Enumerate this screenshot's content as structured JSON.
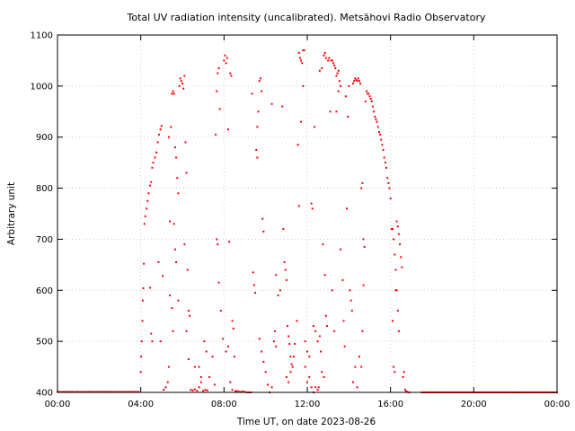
{
  "chart_data": {
    "type": "scatter",
    "title": "Total UV radiation intensity (uncalibrated). Metsähovi Radio Observatory",
    "xlabel": "Time UT, on date 2023-08-26",
    "ylabel": "Arbitrary unit",
    "xlim": [
      0,
      24
    ],
    "ylim": [
      400,
      1100
    ],
    "grid": true,
    "point_color": "#ff0000",
    "x_ticks": [
      {
        "value": 0,
        "label": "00:00"
      },
      {
        "value": 4,
        "label": "04:00"
      },
      {
        "value": 8,
        "label": "08:00"
      },
      {
        "value": 12,
        "label": "12:00"
      },
      {
        "value": 16,
        "label": "16:00"
      },
      {
        "value": 20,
        "label": "20:00"
      },
      {
        "value": 24,
        "label": "00:00"
      }
    ],
    "y_ticks": [
      {
        "value": 400,
        "label": "400"
      },
      {
        "value": 500,
        "label": "500"
      },
      {
        "value": 600,
        "label": "600"
      },
      {
        "value": 700,
        "label": "700"
      },
      {
        "value": 800,
        "label": "800"
      },
      {
        "value": 900,
        "label": "900"
      },
      {
        "value": 1000,
        "label": "1000"
      },
      {
        "value": 1100,
        "label": "1100"
      }
    ],
    "points": [
      [
        0.0,
        401
      ],
      [
        0.5,
        401
      ],
      [
        1.0,
        401
      ],
      [
        1.5,
        401
      ],
      [
        2.0,
        401
      ],
      [
        2.5,
        401
      ],
      [
        3.0,
        401
      ],
      [
        3.5,
        401
      ],
      [
        3.9,
        401
      ],
      [
        4.0,
        440
      ],
      [
        4.02,
        470
      ],
      [
        4.05,
        500
      ],
      [
        4.08,
        540
      ],
      [
        4.1,
        580
      ],
      [
        4.12,
        604
      ],
      [
        4.15,
        652
      ],
      [
        4.18,
        730
      ],
      [
        4.22,
        745
      ],
      [
        4.28,
        760
      ],
      [
        4.33,
        775
      ],
      [
        4.38,
        790
      ],
      [
        4.45,
        805
      ],
      [
        4.5,
        812
      ],
      [
        4.55,
        840
      ],
      [
        4.6,
        850
      ],
      [
        4.68,
        860
      ],
      [
        4.75,
        870
      ],
      [
        4.82,
        890
      ],
      [
        4.88,
        905
      ],
      [
        4.95,
        915
      ],
      [
        5.0,
        922
      ],
      [
        4.45,
        605
      ],
      [
        4.5,
        515
      ],
      [
        4.55,
        500
      ],
      [
        4.85,
        655
      ],
      [
        4.95,
        500
      ],
      [
        5.05,
        628
      ],
      [
        5.1,
        405
      ],
      [
        5.2,
        410
      ],
      [
        5.3,
        420
      ],
      [
        5.35,
        450
      ],
      [
        5.4,
        735
      ],
      [
        5.45,
        920
      ],
      [
        5.5,
        985
      ],
      [
        5.55,
        990
      ],
      [
        5.6,
        985
      ],
      [
        5.65,
        880
      ],
      [
        5.7,
        860
      ],
      [
        5.75,
        820
      ],
      [
        5.8,
        790
      ],
      [
        5.35,
        900
      ],
      [
        5.4,
        590
      ],
      [
        5.5,
        565
      ],
      [
        5.55,
        520
      ],
      [
        5.6,
        730
      ],
      [
        5.65,
        680
      ],
      [
        5.7,
        655
      ],
      [
        5.8,
        580
      ],
      [
        5.85,
        1000
      ],
      [
        5.9,
        1015
      ],
      [
        5.95,
        1010
      ],
      [
        6.0,
        1005
      ],
      [
        6.05,
        995
      ],
      [
        6.1,
        1020
      ],
      [
        6.15,
        890
      ],
      [
        6.2,
        830
      ],
      [
        6.25,
        640
      ],
      [
        6.3,
        560
      ],
      [
        6.35,
        550
      ],
      [
        6.1,
        690
      ],
      [
        6.2,
        520
      ],
      [
        6.3,
        465
      ],
      [
        6.4,
        405
      ],
      [
        6.5,
        404
      ],
      [
        6.6,
        406
      ],
      [
        6.7,
        403
      ],
      [
        6.8,
        410
      ],
      [
        6.9,
        420
      ],
      [
        7.0,
        403
      ],
      [
        7.1,
        405
      ],
      [
        7.2,
        404
      ],
      [
        6.6,
        450
      ],
      [
        6.8,
        450
      ],
      [
        6.9,
        430
      ],
      [
        7.05,
        500
      ],
      [
        7.15,
        480
      ],
      [
        7.3,
        430
      ],
      [
        7.45,
        470
      ],
      [
        7.55,
        415
      ],
      [
        7.6,
        905
      ],
      [
        7.65,
        990
      ],
      [
        7.7,
        1025
      ],
      [
        7.75,
        1035
      ],
      [
        7.8,
        955
      ],
      [
        7.65,
        700
      ],
      [
        7.7,
        690
      ],
      [
        7.75,
        615
      ],
      [
        7.85,
        560
      ],
      [
        7.95,
        505
      ],
      [
        8.0,
        1050
      ],
      [
        8.05,
        1060
      ],
      [
        8.1,
        1045
      ],
      [
        8.15,
        1055
      ],
      [
        8.2,
        915
      ],
      [
        8.25,
        695
      ],
      [
        8.1,
        480
      ],
      [
        8.2,
        490
      ],
      [
        8.3,
        1025
      ],
      [
        8.35,
        1020
      ],
      [
        8.4,
        540
      ],
      [
        8.45,
        525
      ],
      [
        8.5,
        470
      ],
      [
        8.3,
        420
      ],
      [
        8.4,
        405
      ],
      [
        8.55,
        402
      ],
      [
        8.6,
        403
      ],
      [
        8.7,
        402
      ],
      [
        8.8,
        401
      ],
      [
        8.9,
        402
      ],
      [
        9.0,
        401
      ],
      [
        9.1,
        400
      ],
      [
        9.2,
        400
      ],
      [
        9.3,
        400
      ],
      [
        9.35,
        985
      ],
      [
        9.4,
        635
      ],
      [
        9.45,
        610
      ],
      [
        9.5,
        595
      ],
      [
        9.55,
        875
      ],
      [
        9.6,
        860
      ],
      [
        9.6,
        920
      ],
      [
        9.65,
        950
      ],
      [
        9.7,
        1010
      ],
      [
        9.75,
        1015
      ],
      [
        9.8,
        990
      ],
      [
        9.85,
        740
      ],
      [
        9.9,
        715
      ],
      [
        9.7,
        505
      ],
      [
        9.8,
        480
      ],
      [
        9.9,
        460
      ],
      [
        10.0,
        440
      ],
      [
        10.1,
        415
      ],
      [
        10.2,
        400
      ],
      [
        10.3,
        410
      ],
      [
        10.4,
        500
      ],
      [
        10.45,
        520
      ],
      [
        10.5,
        490
      ],
      [
        10.3,
        965
      ],
      [
        10.5,
        630
      ],
      [
        10.6,
        590
      ],
      [
        10.7,
        600
      ],
      [
        10.8,
        960
      ],
      [
        10.85,
        720
      ],
      [
        10.9,
        655
      ],
      [
        10.95,
        640
      ],
      [
        11.0,
        620
      ],
      [
        11.05,
        530
      ],
      [
        11.1,
        510
      ],
      [
        11.15,
        495
      ],
      [
        11.2,
        470
      ],
      [
        11.25,
        455
      ],
      [
        11.0,
        430
      ],
      [
        11.1,
        420
      ],
      [
        11.2,
        440
      ],
      [
        11.3,
        450
      ],
      [
        11.35,
        470
      ],
      [
        11.4,
        495
      ],
      [
        11.5,
        540
      ],
      [
        11.55,
        885
      ],
      [
        11.6,
        1065
      ],
      [
        11.65,
        1055
      ],
      [
        11.7,
        1050
      ],
      [
        11.75,
        1045
      ],
      [
        11.8,
        1070
      ],
      [
        11.85,
        1070
      ],
      [
        11.8,
        1000
      ],
      [
        11.7,
        930
      ],
      [
        11.6,
        765
      ],
      [
        11.9,
        450
      ],
      [
        12.0,
        420
      ],
      [
        12.1,
        430
      ],
      [
        12.2,
        410
      ],
      [
        12.3,
        400
      ],
      [
        12.4,
        410
      ],
      [
        12.5,
        405
      ],
      [
        12.55,
        410
      ],
      [
        11.9,
        500
      ],
      [
        12.0,
        480
      ],
      [
        12.1,
        470
      ],
      [
        12.3,
        530
      ],
      [
        12.4,
        520
      ],
      [
        12.5,
        500
      ],
      [
        12.6,
        510
      ],
      [
        12.65,
        480
      ],
      [
        12.2,
        770
      ],
      [
        12.25,
        760
      ],
      [
        12.35,
        920
      ],
      [
        12.6,
        1030
      ],
      [
        12.7,
        1035
      ],
      [
        12.8,
        1060
      ],
      [
        12.85,
        1065
      ],
      [
        12.9,
        1055
      ],
      [
        12.75,
        690
      ],
      [
        12.85,
        630
      ],
      [
        12.9,
        550
      ],
      [
        12.95,
        530
      ],
      [
        12.7,
        440
      ],
      [
        12.8,
        430
      ],
      [
        13.0,
        1050
      ],
      [
        13.05,
        1055
      ],
      [
        13.1,
        950
      ],
      [
        13.15,
        1050
      ],
      [
        13.2,
        1050
      ],
      [
        13.25,
        1045
      ],
      [
        13.3,
        1040
      ],
      [
        13.35,
        1035
      ],
      [
        13.4,
        1020
      ],
      [
        13.45,
        1025
      ],
      [
        13.5,
        1030
      ],
      [
        13.55,
        1010
      ],
      [
        13.6,
        1000
      ],
      [
        13.2,
        600
      ],
      [
        13.3,
        520
      ],
      [
        13.4,
        950
      ],
      [
        13.5,
        990
      ],
      [
        13.6,
        680
      ],
      [
        13.7,
        620
      ],
      [
        13.75,
        540
      ],
      [
        13.8,
        490
      ],
      [
        13.85,
        980
      ],
      [
        13.9,
        760
      ],
      [
        13.95,
        940
      ],
      [
        14.0,
        1000
      ],
      [
        14.05,
        600
      ],
      [
        14.1,
        580
      ],
      [
        14.15,
        560
      ],
      [
        14.2,
        1005
      ],
      [
        14.25,
        1010
      ],
      [
        14.3,
        1015
      ],
      [
        14.35,
        1012
      ],
      [
        14.4,
        1010
      ],
      [
        14.45,
        1015
      ],
      [
        14.5,
        1010
      ],
      [
        14.55,
        1005
      ],
      [
        14.2,
        420
      ],
      [
        14.3,
        450
      ],
      [
        14.4,
        410
      ],
      [
        14.5,
        470
      ],
      [
        14.6,
        450
      ],
      [
        14.65,
        520
      ],
      [
        14.7,
        610
      ],
      [
        14.6,
        800
      ],
      [
        14.65,
        810
      ],
      [
        14.7,
        700
      ],
      [
        14.75,
        685
      ],
      [
        14.8,
        970
      ],
      [
        14.85,
        990
      ],
      [
        14.9,
        985
      ],
      [
        14.95,
        985
      ],
      [
        15.0,
        980
      ],
      [
        15.05,
        975
      ],
      [
        15.1,
        970
      ],
      [
        15.15,
        960
      ],
      [
        15.2,
        950
      ],
      [
        15.25,
        940
      ],
      [
        15.3,
        935
      ],
      [
        15.35,
        930
      ],
      [
        15.4,
        920
      ],
      [
        15.45,
        910
      ],
      [
        15.5,
        905
      ],
      [
        15.55,
        895
      ],
      [
        15.6,
        885
      ],
      [
        15.65,
        875
      ],
      [
        15.7,
        860
      ],
      [
        15.75,
        850
      ],
      [
        15.8,
        840
      ],
      [
        15.85,
        820
      ],
      [
        15.9,
        810
      ],
      [
        15.95,
        800
      ],
      [
        16.0,
        780
      ],
      [
        16.05,
        720
      ],
      [
        16.1,
        720
      ],
      [
        16.15,
        700
      ],
      [
        16.2,
        670
      ],
      [
        16.25,
        640
      ],
      [
        16.3,
        600
      ],
      [
        16.35,
        560
      ],
      [
        16.4,
        520
      ],
      [
        16.1,
        540
      ],
      [
        16.15,
        450
      ],
      [
        16.2,
        440
      ],
      [
        16.25,
        600
      ],
      [
        16.3,
        735
      ],
      [
        16.35,
        725
      ],
      [
        16.4,
        710
      ],
      [
        16.45,
        690
      ],
      [
        16.5,
        665
      ],
      [
        16.55,
        645
      ],
      [
        16.6,
        430
      ],
      [
        16.65,
        440
      ],
      [
        16.7,
        405
      ],
      [
        16.75,
        402
      ],
      [
        16.8,
        401
      ],
      [
        16.9,
        400
      ],
      [
        17.5,
        400
      ],
      [
        18.0,
        400
      ],
      [
        18.5,
        400
      ],
      [
        19.0,
        400
      ],
      [
        19.5,
        400
      ],
      [
        20.0,
        400
      ],
      [
        20.5,
        400
      ],
      [
        21.0,
        400
      ],
      [
        21.5,
        400
      ],
      [
        22.0,
        400
      ],
      [
        22.5,
        400
      ],
      [
        23.0,
        400
      ],
      [
        23.5,
        400
      ],
      [
        24.0,
        400
      ]
    ]
  }
}
